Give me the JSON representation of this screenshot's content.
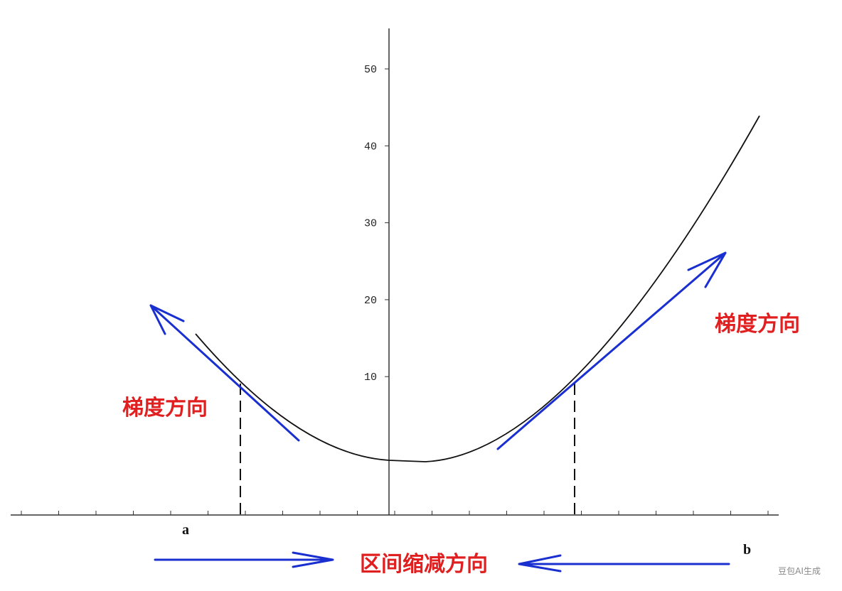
{
  "y_axis": {
    "ticks": [
      10,
      20,
      30,
      40,
      50
    ]
  },
  "labels": {
    "gradient_left": "梯度方向",
    "gradient_right": "梯度方向",
    "a": "a",
    "b": "b",
    "interval": "区间缩减方向"
  },
  "watermark": "豆包AI生成"
}
